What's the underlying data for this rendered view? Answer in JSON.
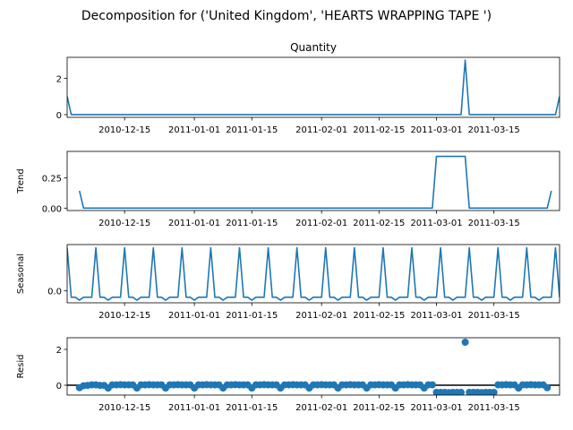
{
  "suptitle": "Decomposition for ('United Kingdom', 'HEARTS WRAPPING TAPE ')",
  "chart_data": [
    {
      "type": "line",
      "title": "Quantity",
      "ylabel": "",
      "xlim": [
        "2010-12-01",
        "2011-03-31"
      ],
      "ylim": [
        -0.15,
        3.15
      ],
      "yticks": [
        0,
        2
      ],
      "x_tick_dates": [
        "2010-12-15",
        "2011-01-01",
        "2011-01-15",
        "2011-02-01",
        "2011-02-15",
        "2011-03-01",
        "2011-03-15"
      ],
      "x_tick_labels": [
        "2010-12-15",
        "2011-01-01",
        "2011-01-15",
        "2011-02-01",
        "2011-02-15",
        "2011-03-01",
        "2011-03-15"
      ],
      "color": "#1f77b4",
      "points": [
        [
          "2010-12-01",
          1
        ],
        [
          "2010-12-02",
          0
        ],
        [
          "2011-03-07",
          0
        ],
        [
          "2011-03-08",
          3
        ],
        [
          "2011-03-09",
          0
        ],
        [
          "2011-03-30",
          0
        ],
        [
          "2011-03-31",
          1
        ]
      ]
    },
    {
      "type": "line",
      "title": "",
      "ylabel": "Trend",
      "xlim": [
        "2010-12-01",
        "2011-03-31"
      ],
      "ylim": [
        -0.02,
        0.47
      ],
      "yticks": [
        0.0,
        0.25
      ],
      "ytick_labels": [
        "0.00",
        "0.25"
      ],
      "x_tick_dates": [
        "2010-12-15",
        "2011-01-01",
        "2011-01-15",
        "2011-02-01",
        "2011-02-15",
        "2011-03-01",
        "2011-03-15"
      ],
      "x_tick_labels": [
        "2010-12-15",
        "2011-01-01",
        "2011-01-15",
        "2011-02-01",
        "2011-02-15",
        "2011-03-01",
        "2011-03-15"
      ],
      "color": "#1f77b4",
      "points": [
        [
          "2010-12-04",
          0.143
        ],
        [
          "2010-12-05",
          0
        ],
        [
          "2011-02-28",
          0
        ],
        [
          "2011-03-01",
          0.429
        ],
        [
          "2011-03-08",
          0.429
        ],
        [
          "2011-03-09",
          0
        ],
        [
          "2011-03-28",
          0
        ],
        [
          "2011-03-29",
          0.143
        ]
      ]
    },
    {
      "type": "line",
      "title": "",
      "ylabel": "Seasonal",
      "xlim": [
        "2010-12-01",
        "2011-03-31"
      ],
      "ylim": [
        -0.045,
        0.175
      ],
      "yticks": [
        0.0
      ],
      "ytick_labels": [
        "0.0"
      ],
      "x_tick_dates": [
        "2010-12-15",
        "2011-01-01",
        "2011-01-15",
        "2011-02-01",
        "2011-02-15",
        "2011-03-01",
        "2011-03-15"
      ],
      "x_tick_labels": [
        "2010-12-15",
        "2011-01-01",
        "2011-01-15",
        "2011-02-01",
        "2011-02-15",
        "2011-03-01",
        "2011-03-15"
      ],
      "color": "#1f77b4",
      "start": "2010-12-01",
      "period_pattern": [
        0.163,
        -0.024,
        -0.024,
        -0.035,
        -0.024,
        -0.024,
        -0.024
      ]
    },
    {
      "type": "scatter",
      "title": "",
      "ylabel": "Resid",
      "xlim": [
        "2010-12-01",
        "2011-03-31"
      ],
      "ylim": [
        -0.55,
        2.65
      ],
      "yticks": [
        0,
        2
      ],
      "baseline": 0,
      "x_tick_dates": [
        "2010-12-15",
        "2011-01-01",
        "2011-01-15",
        "2011-02-01",
        "2011-02-15",
        "2011-03-01",
        "2011-03-15"
      ],
      "x_tick_labels": [
        "2010-12-15",
        "2011-01-01",
        "2011-01-15",
        "2011-02-01",
        "2011-02-15",
        "2011-03-01",
        "2011-03-15"
      ],
      "color": "#1f77b4",
      "start": "2010-12-04",
      "end": "2011-03-28",
      "points": [
        [
          "2010-12-04",
          -0.14
        ],
        [
          "2010-12-05",
          -0.03
        ],
        [
          "2010-12-06",
          -0.01
        ],
        [
          "2010-12-07",
          0.02
        ],
        [
          "2010-12-08",
          0.02
        ],
        [
          "2010-12-09",
          -0.01
        ],
        [
          "2010-12-10",
          -0.01
        ],
        [
          "2010-12-11",
          -0.16
        ],
        [
          "2010-12-12",
          0.02
        ],
        [
          "2010-12-13",
          0.02
        ],
        [
          "2010-12-14",
          0.03
        ],
        [
          "2010-12-15",
          0.02
        ],
        [
          "2010-12-16",
          0.02
        ],
        [
          "2010-12-17",
          0.02
        ],
        [
          "2010-12-18",
          -0.16
        ],
        [
          "2010-12-19",
          0.02
        ],
        [
          "2010-12-20",
          0.02
        ],
        [
          "2010-12-21",
          0.03
        ],
        [
          "2010-12-22",
          0.02
        ],
        [
          "2010-12-23",
          0.02
        ],
        [
          "2010-12-24",
          0.02
        ],
        [
          "2010-12-25",
          -0.16
        ],
        [
          "2010-12-26",
          0.02
        ],
        [
          "2010-12-27",
          0.02
        ],
        [
          "2010-12-28",
          0.03
        ],
        [
          "2010-12-29",
          0.02
        ],
        [
          "2010-12-30",
          0.02
        ],
        [
          "2010-12-31",
          0.02
        ],
        [
          "2011-01-01",
          -0.16
        ],
        [
          "2011-01-02",
          0.02
        ],
        [
          "2011-01-03",
          0.02
        ],
        [
          "2011-01-04",
          0.03
        ],
        [
          "2011-01-05",
          0.02
        ],
        [
          "2011-01-06",
          0.02
        ],
        [
          "2011-01-07",
          0.02
        ],
        [
          "2011-01-08",
          -0.16
        ],
        [
          "2011-01-09",
          0.02
        ],
        [
          "2011-01-10",
          0.02
        ],
        [
          "2011-01-11",
          0.03
        ],
        [
          "2011-01-12",
          0.02
        ],
        [
          "2011-01-13",
          0.02
        ],
        [
          "2011-01-14",
          0.02
        ],
        [
          "2011-01-15",
          -0.16
        ],
        [
          "2011-01-16",
          0.02
        ],
        [
          "2011-01-17",
          0.02
        ],
        [
          "2011-01-18",
          0.03
        ],
        [
          "2011-01-19",
          0.02
        ],
        [
          "2011-01-20",
          0.02
        ],
        [
          "2011-01-21",
          0.02
        ],
        [
          "2011-01-22",
          -0.16
        ],
        [
          "2011-01-23",
          0.02
        ],
        [
          "2011-01-24",
          0.02
        ],
        [
          "2011-01-25",
          0.03
        ],
        [
          "2011-01-26",
          0.02
        ],
        [
          "2011-01-27",
          0.02
        ],
        [
          "2011-01-28",
          0.02
        ],
        [
          "2011-01-29",
          -0.16
        ],
        [
          "2011-01-30",
          0.02
        ],
        [
          "2011-01-31",
          0.02
        ],
        [
          "2011-02-01",
          0.03
        ],
        [
          "2011-02-02",
          0.02
        ],
        [
          "2011-02-03",
          0.02
        ],
        [
          "2011-02-04",
          0.02
        ],
        [
          "2011-02-05",
          -0.16
        ],
        [
          "2011-02-06",
          0.02
        ],
        [
          "2011-02-07",
          0.02
        ],
        [
          "2011-02-08",
          0.03
        ],
        [
          "2011-02-09",
          0.02
        ],
        [
          "2011-02-10",
          0.02
        ],
        [
          "2011-02-11",
          0.02
        ],
        [
          "2011-02-12",
          -0.16
        ],
        [
          "2011-02-13",
          0.02
        ],
        [
          "2011-02-14",
          0.02
        ],
        [
          "2011-02-15",
          0.03
        ],
        [
          "2011-02-16",
          0.02
        ],
        [
          "2011-02-17",
          0.02
        ],
        [
          "2011-02-18",
          0.02
        ],
        [
          "2011-02-19",
          -0.16
        ],
        [
          "2011-02-20",
          0.02
        ],
        [
          "2011-02-21",
          0.02
        ],
        [
          "2011-02-22",
          0.03
        ],
        [
          "2011-02-23",
          0.02
        ],
        [
          "2011-02-24",
          0.02
        ],
        [
          "2011-02-25",
          0.02
        ],
        [
          "2011-02-26",
          -0.16
        ],
        [
          "2011-02-27",
          0.02
        ],
        [
          "2011-02-28",
          0.02
        ],
        [
          "2011-03-01",
          -0.4
        ],
        [
          "2011-03-02",
          -0.4
        ],
        [
          "2011-03-03",
          -0.4
        ],
        [
          "2011-03-04",
          -0.41
        ],
        [
          "2011-03-05",
          -0.4
        ],
        [
          "2011-03-06",
          -0.4
        ],
        [
          "2011-03-07",
          -0.4
        ],
        [
          "2011-03-08",
          2.4
        ],
        [
          "2011-03-09",
          -0.4
        ],
        [
          "2011-03-10",
          -0.4
        ],
        [
          "2011-03-11",
          -0.4
        ],
        [
          "2011-03-12",
          -0.41
        ],
        [
          "2011-03-13",
          -0.4
        ],
        [
          "2011-03-14",
          -0.4
        ],
        [
          "2011-03-15",
          -0.4
        ],
        [
          "2011-03-16",
          0.02
        ],
        [
          "2011-03-17",
          0.02
        ],
        [
          "2011-03-18",
          0.03
        ],
        [
          "2011-03-19",
          0.02
        ],
        [
          "2011-03-20",
          0.02
        ],
        [
          "2011-03-21",
          -0.16
        ],
        [
          "2011-03-22",
          0.02
        ],
        [
          "2011-03-23",
          0.02
        ],
        [
          "2011-03-24",
          0.03
        ],
        [
          "2011-03-25",
          0.02
        ],
        [
          "2011-03-26",
          0.02
        ],
        [
          "2011-03-27",
          0.02
        ],
        [
          "2011-03-28",
          -0.14
        ]
      ]
    }
  ]
}
